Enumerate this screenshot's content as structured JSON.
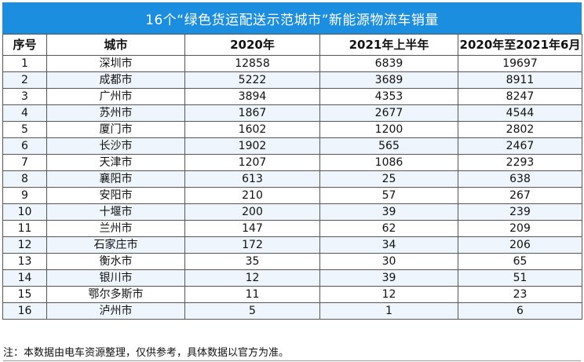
{
  "title": "16个“绿色货运配送示范城市”新能源物流车销量",
  "columns": [
    "序号",
    "城市",
    "2020年",
    "2021年上半年",
    "2020年至2021年6月"
  ],
  "rows": [
    [
      "1",
      "深圳市",
      "12858",
      "6839",
      "19697"
    ],
    [
      "2",
      "成都市",
      "5222",
      "3689",
      "8911"
    ],
    [
      "3",
      "广州市",
      "3894",
      "4353",
      "8247"
    ],
    [
      "4",
      "苏州市",
      "1867",
      "2677",
      "4544"
    ],
    [
      "5",
      "厦门市",
      "1602",
      "1200",
      "2802"
    ],
    [
      "6",
      "长沙市",
      "1902",
      "565",
      "2467"
    ],
    [
      "7",
      "天津市",
      "1207",
      "1086",
      "2293"
    ],
    [
      "8",
      "襄阳市",
      "613",
      "25",
      "638"
    ],
    [
      "9",
      "安阳市",
      "210",
      "57",
      "267"
    ],
    [
      "10",
      "十堰市",
      "200",
      "39",
      "239"
    ],
    [
      "11",
      "兰州市",
      "147",
      "62",
      "209"
    ],
    [
      "12",
      "石家庄市",
      "172",
      "34",
      "206"
    ],
    [
      "13",
      "衡水市",
      "35",
      "30",
      "65"
    ],
    [
      "14",
      "银川市",
      "12",
      "39",
      "51"
    ],
    [
      "15",
      "鄂尔多斯市",
      "11",
      "12",
      "23"
    ],
    [
      "16",
      "泸州市",
      "5",
      "1",
      "6"
    ]
  ],
  "note": "注：本数据由电车资源整理，仅供参考，具体数据以官方为准。",
  "colors": {
    "title_bg": "#1c8ee0",
    "title_text": "#ffffff",
    "row_alt": "#eef5fc"
  }
}
